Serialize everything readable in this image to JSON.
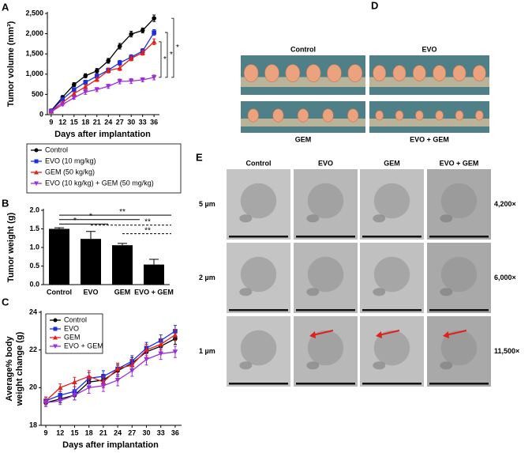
{
  "chart_data": [
    {
      "type": "line",
      "panel_label": "A",
      "ylabel": "Tumor volume (mm³)",
      "xlabel": "Days after implantation",
      "x": [
        9,
        12,
        15,
        18,
        21,
        24,
        27,
        30,
        33,
        36
      ],
      "xlim": [
        8,
        37
      ],
      "xticks": [
        9,
        12,
        15,
        18,
        21,
        24,
        27,
        30,
        33,
        36
      ],
      "ylim": [
        0,
        2500
      ],
      "yticks": [
        0,
        500,
        {
          "value": 1000,
          "label": "1,000"
        },
        {
          "value": 1500,
          "label": "1,500"
        },
        {
          "value": 2000,
          "label": "2,000"
        },
        {
          "value": 2500,
          "label": "2,500"
        }
      ],
      "legend": "below",
      "series": [
        {
          "name": "Control",
          "color": "#000000",
          "marker": "circle",
          "values": [
            100,
            430,
            740,
            960,
            1080,
            1330,
            1690,
            1990,
            2080,
            2380
          ],
          "errors": [
            20,
            40,
            50,
            50,
            60,
            60,
            70,
            70,
            60,
            80
          ]
        },
        {
          "name": "EVO (10 mg/kg)",
          "color": "#1c2fe0",
          "marker": "square",
          "values": [
            90,
            380,
            620,
            800,
            950,
            1100,
            1280,
            1420,
            1570,
            2030
          ],
          "errors": [
            15,
            40,
            40,
            50,
            50,
            50,
            60,
            60,
            60,
            70
          ]
        },
        {
          "name": "GEM (50 kg/kg)",
          "color": "#e0201b",
          "marker": "triangle-up",
          "values": [
            80,
            300,
            520,
            690,
            870,
            1090,
            1150,
            1390,
            1530,
            1800
          ],
          "errors": [
            15,
            30,
            40,
            50,
            50,
            60,
            60,
            60,
            60,
            70
          ]
        },
        {
          "name": "EVO (10 kg/kg) + GEM (50 mg/kg)",
          "color": "#9b30d9",
          "marker": "triangle-down",
          "values": [
            70,
            250,
            420,
            560,
            620,
            700,
            820,
            830,
            860,
            920
          ],
          "errors": [
            10,
            30,
            40,
            60,
            50,
            50,
            60,
            60,
            50,
            60
          ]
        }
      ],
      "annotations": [
        "*",
        "*",
        "*"
      ]
    },
    {
      "type": "bar",
      "panel_label": "B",
      "ylabel": "Tumor weight (g)",
      "categories": [
        "Control",
        "EVO",
        "GEM",
        "EVO + GEM"
      ],
      "values": [
        1.5,
        1.23,
        1.06,
        0.54
      ],
      "errors": [
        0.03,
        0.2,
        0.05,
        0.14
      ],
      "color": "#000000",
      "ylim": [
        0,
        2
      ],
      "yticks": [
        {
          "value": 0,
          "label": "0.0"
        },
        {
          "value": 0.5,
          "label": "0.5"
        },
        {
          "value": 1,
          "label": "1.0"
        },
        {
          "value": 1.5,
          "label": "1.5"
        },
        {
          "value": 2,
          "label": "2.0"
        }
      ],
      "annotations": [
        "**",
        "*",
        "*",
        "**",
        "**"
      ]
    },
    {
      "type": "line",
      "panel_label": "C",
      "ylabel": [
        "Average% body",
        "weight change (g)"
      ],
      "xlabel": "Days after implantation",
      "x": [
        9,
        12,
        15,
        18,
        21,
        24,
        27,
        30,
        33,
        36
      ],
      "xlim": [
        8,
        37
      ],
      "xticks": [
        9,
        12,
        15,
        18,
        21,
        24,
        27,
        30,
        33,
        36
      ],
      "ylim": [
        18,
        24
      ],
      "yticks": [
        18,
        20,
        22,
        24
      ],
      "legend": "upper left",
      "series": [
        {
          "name": "Control",
          "color": "#000000",
          "marker": "circle",
          "values": [
            19.2,
            19.4,
            19.6,
            20.3,
            20.4,
            20.9,
            21.3,
            21.9,
            22.2,
            22.6
          ],
          "errors": [
            0.2,
            0.2,
            0.25,
            0.3,
            0.3,
            0.3,
            0.3,
            0.3,
            0.3,
            0.3
          ]
        },
        {
          "name": "EVO",
          "color": "#1c2fe0",
          "marker": "square",
          "values": [
            19.3,
            19.6,
            19.8,
            20.5,
            20.6,
            21.0,
            21.4,
            22.1,
            22.5,
            23.0
          ],
          "errors": [
            0.2,
            0.2,
            0.25,
            0.3,
            0.3,
            0.3,
            0.3,
            0.3,
            0.3,
            0.3
          ]
        },
        {
          "name": "GEM",
          "color": "#e0201b",
          "marker": "triangle-up",
          "values": [
            19.3,
            20.0,
            20.3,
            20.6,
            20.3,
            21.0,
            21.2,
            22.0,
            22.3,
            22.8
          ],
          "errors": [
            0.2,
            0.2,
            0.25,
            0.3,
            0.3,
            0.3,
            0.3,
            0.3,
            0.3,
            0.3
          ]
        },
        {
          "name": "EVO + GEM",
          "color": "#9b30d9",
          "marker": "triangle-down",
          "values": [
            19.2,
            19.3,
            19.6,
            20.0,
            20.1,
            20.4,
            20.9,
            21.5,
            21.8,
            21.9
          ],
          "errors": [
            0.2,
            0.2,
            0.25,
            0.3,
            0.3,
            0.3,
            0.3,
            0.3,
            0.3,
            0.3
          ]
        }
      ]
    }
  ],
  "panel_d": {
    "panel_label": "D",
    "groups": [
      "Control",
      "EVO",
      "GEM",
      "EVO + GEM"
    ]
  },
  "panel_e": {
    "panel_label": "E",
    "columns": [
      "Control",
      "EVO",
      "GEM",
      "EVO + GEM"
    ],
    "rows": [
      {
        "scale": "5 µm",
        "magnification": "4,200×"
      },
      {
        "scale": "2 µm",
        "magnification": "6,000×"
      },
      {
        "scale": "1 µm",
        "magnification": "11,500×"
      }
    ]
  }
}
